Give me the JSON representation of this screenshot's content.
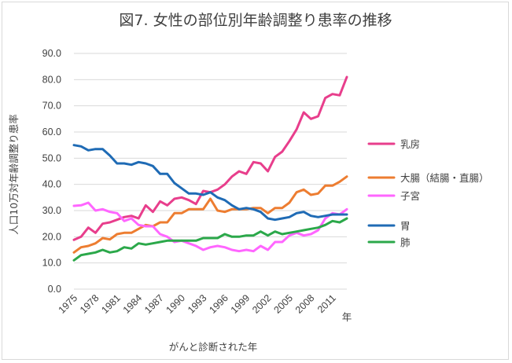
{
  "chart_data": {
    "type": "line",
    "title": "図7. 女性の部位別年齢調整り患率の推移",
    "xlabel": "がんと診断された年",
    "ylabel": "人口10万対年齢調整り患率",
    "x_unit_label": "年",
    "ylim": [
      0,
      90
    ],
    "yticks": [
      "0.0",
      "10.0",
      "20.0",
      "30.0",
      "40.0",
      "50.0",
      "60.0",
      "70.0",
      "80.0",
      "90.0"
    ],
    "xtick_labels": [
      "1975",
      "1978",
      "1981",
      "1984",
      "1987",
      "1990",
      "1993",
      "1996",
      "1999",
      "2002",
      "2005",
      "2008",
      "2011"
    ],
    "grid": "horizontal",
    "legend_position": "right",
    "x": [
      1975,
      1976,
      1977,
      1978,
      1979,
      1980,
      1981,
      1982,
      1983,
      1984,
      1985,
      1986,
      1987,
      1988,
      1989,
      1990,
      1991,
      1992,
      1993,
      1994,
      1995,
      1996,
      1997,
      1998,
      1999,
      2000,
      2001,
      2002,
      2003,
      2004,
      2005,
      2006,
      2007,
      2008,
      2009,
      2010,
      2011,
      2012,
      2013
    ],
    "series": [
      {
        "name": "乳房",
        "color": "#e83e8c",
        "values": [
          18.8,
          20.0,
          23.5,
          21.5,
          25.0,
          25.5,
          26.5,
          27.5,
          28.0,
          27.0,
          32.0,
          29.5,
          33.5,
          32.0,
          34.5,
          35.0,
          34.0,
          32.5,
          37.5,
          37.0,
          38.0,
          40.0,
          43.0,
          45.0,
          44.0,
          48.5,
          48.0,
          45.0,
          50.5,
          52.5,
          56.5,
          61.0,
          67.5,
          65.0,
          66.0,
          73.0,
          74.5,
          74.0,
          81.0
        ]
      },
      {
        "name": "大腸（結腸・直腸）",
        "color": "#ed7d31",
        "values": [
          14.0,
          16.0,
          16.5,
          17.5,
          19.5,
          19.0,
          21.0,
          21.5,
          21.5,
          23.0,
          24.5,
          24.0,
          25.5,
          25.5,
          29.0,
          29.0,
          30.5,
          30.5,
          30.5,
          34.5,
          30.0,
          29.5,
          30.5,
          30.5,
          30.5,
          31.0,
          31.0,
          29.0,
          31.0,
          31.0,
          33.0,
          37.0,
          38.0,
          36.0,
          36.5,
          39.5,
          39.5,
          41.0,
          43.0
        ]
      },
      {
        "name": "子宮",
        "color": "#ff66ff",
        "values": [
          31.8,
          32.0,
          33.0,
          30.0,
          30.5,
          29.5,
          29.0,
          26.0,
          27.0,
          24.5,
          24.0,
          24.0,
          21.0,
          20.0,
          18.0,
          18.5,
          17.5,
          16.5,
          15.0,
          16.0,
          16.5,
          16.0,
          15.0,
          14.5,
          15.0,
          14.5,
          16.5,
          15.0,
          18.0,
          18.0,
          20.5,
          21.5,
          20.5,
          21.0,
          22.5,
          27.0,
          29.0,
          28.5,
          30.5
        ]
      },
      {
        "name": "胃",
        "color": "#1f6bb5",
        "values": [
          55.0,
          54.5,
          53.0,
          53.5,
          53.5,
          51.0,
          48.0,
          48.0,
          47.5,
          48.5,
          48.0,
          47.0,
          44.0,
          44.0,
          40.5,
          38.5,
          36.5,
          36.5,
          36.0,
          37.0,
          35.0,
          34.0,
          32.0,
          30.5,
          31.0,
          30.5,
          29.5,
          27.0,
          26.5,
          27.0,
          27.5,
          29.0,
          29.5,
          28.0,
          27.5,
          28.0,
          28.5,
          28.5,
          28.5
        ]
      },
      {
        "name": "肺",
        "color": "#2ba84a",
        "values": [
          11.0,
          13.0,
          13.5,
          14.0,
          15.0,
          14.0,
          14.5,
          16.0,
          15.5,
          17.5,
          17.0,
          17.5,
          18.0,
          18.5,
          18.5,
          18.5,
          18.5,
          18.5,
          19.5,
          19.5,
          19.5,
          21.0,
          20.0,
          20.0,
          20.5,
          20.5,
          22.0,
          20.5,
          22.0,
          21.0,
          21.5,
          22.0,
          22.5,
          23.0,
          23.5,
          24.5,
          26.0,
          25.5,
          27.0
        ]
      }
    ]
  }
}
